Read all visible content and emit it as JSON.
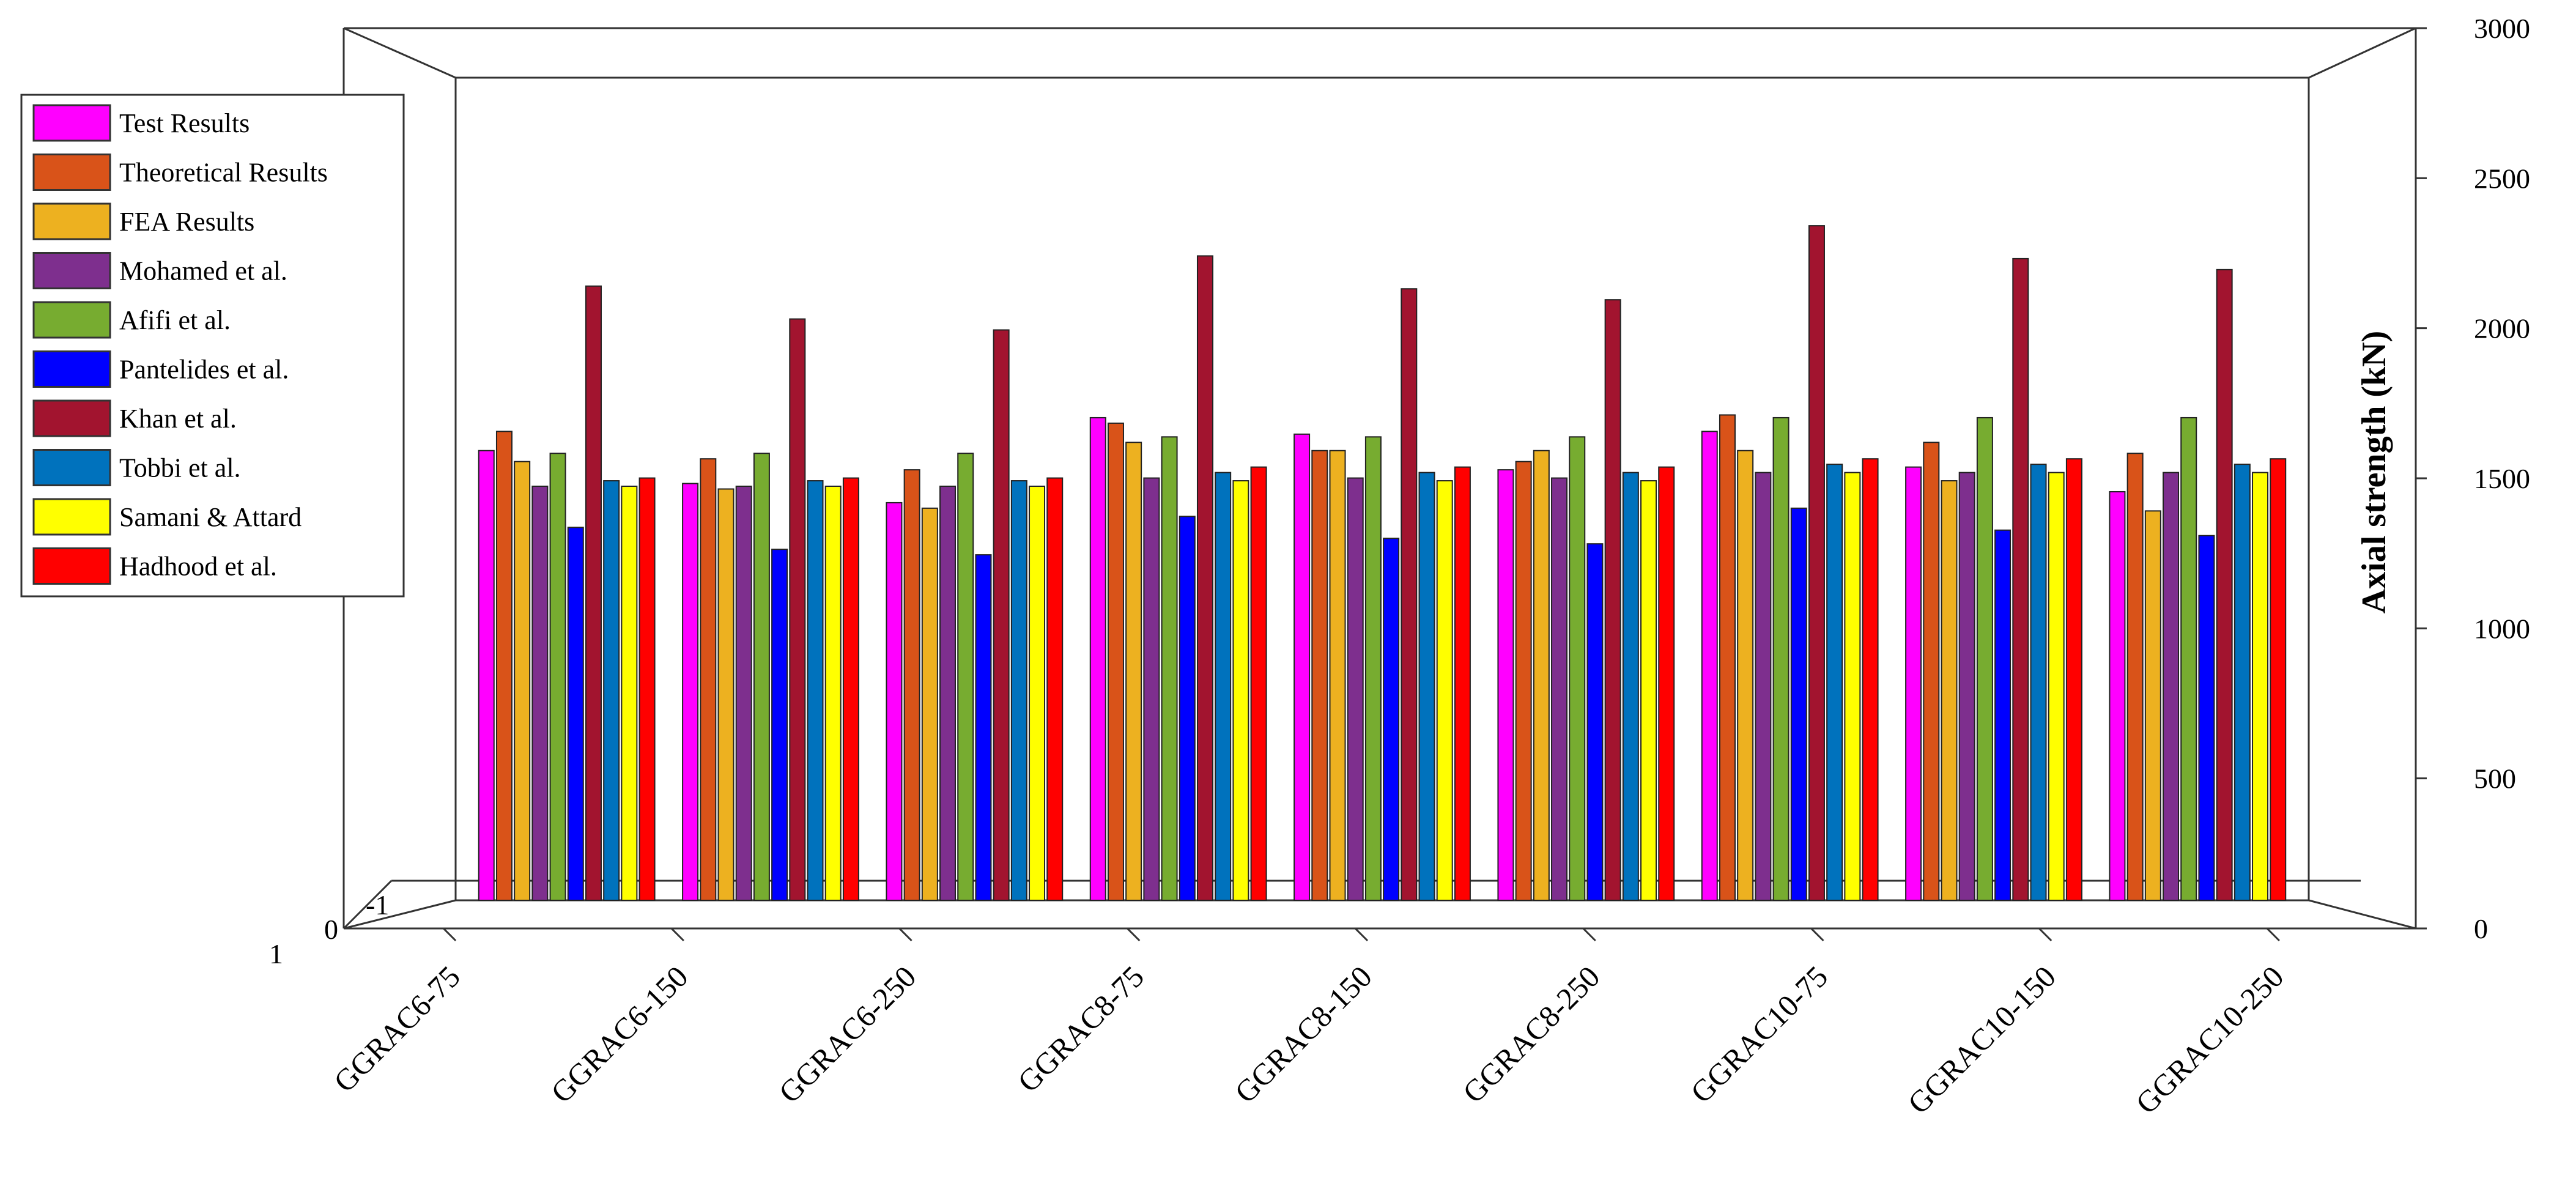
{
  "chart_data": {
    "type": "bar",
    "ylabel": "Axial strength (kN)",
    "ylim": [
      0,
      3000
    ],
    "yticks": [
      0,
      500,
      1000,
      1500,
      2000,
      2500,
      3000
    ],
    "legend_position": "left",
    "categories": [
      "GGRAC6-75",
      "GGRAC6-150",
      "GGRAC6-250",
      "GGRAC8-75",
      "GGRAC8-150",
      "GGRAC8-250",
      "GGRAC10-75",
      "GGRAC10-150",
      "GGRAC10-250"
    ],
    "series": [
      {
        "name": "Test Results",
        "color": "#FF00FF",
        "values": [
          1640,
          1520,
          1450,
          1760,
          1700,
          1570,
          1710,
          1580,
          1490
        ]
      },
      {
        "name": "Theoretical Results",
        "color": "#D95319",
        "values": [
          1710,
          1610,
          1570,
          1740,
          1640,
          1600,
          1770,
          1670,
          1630
        ]
      },
      {
        "name": "FEA Results",
        "color": "#EDB120",
        "values": [
          1600,
          1500,
          1430,
          1670,
          1640,
          1640,
          1640,
          1530,
          1420
        ]
      },
      {
        "name": "Mohamed et al.",
        "color": "#7E2F8E",
        "values": [
          1510,
          1510,
          1510,
          1540,
          1540,
          1540,
          1560,
          1560,
          1560
        ]
      },
      {
        "name": "Afifi et al.",
        "color": "#77AC30",
        "values": [
          1630,
          1630,
          1630,
          1690,
          1690,
          1690,
          1760,
          1760,
          1760
        ]
      },
      {
        "name": "Pantelides et al.",
        "color": "#0000FF",
        "values": [
          1360,
          1280,
          1260,
          1400,
          1320,
          1300,
          1430,
          1350,
          1330
        ]
      },
      {
        "name": "Khan et al.",
        "color": "#A2142F",
        "values": [
          2240,
          2120,
          2080,
          2350,
          2230,
          2190,
          2460,
          2340,
          2300
        ]
      },
      {
        "name": "Tobbi et al.",
        "color": "#0072BD",
        "values": [
          1530,
          1530,
          1530,
          1560,
          1560,
          1560,
          1590,
          1590,
          1590
        ]
      },
      {
        "name": "Samani & Attard",
        "color": "#FFFF00",
        "values": [
          1510,
          1510,
          1510,
          1530,
          1530,
          1530,
          1560,
          1560,
          1560
        ]
      },
      {
        "name": "Hadhood et al.",
        "color": "#FF0000",
        "values": [
          1540,
          1540,
          1540,
          1580,
          1580,
          1580,
          1610,
          1610,
          1610
        ]
      }
    ]
  },
  "corner_labels": {
    "front_one": "1",
    "front_zero": "0",
    "front_minus_one": "-1"
  }
}
